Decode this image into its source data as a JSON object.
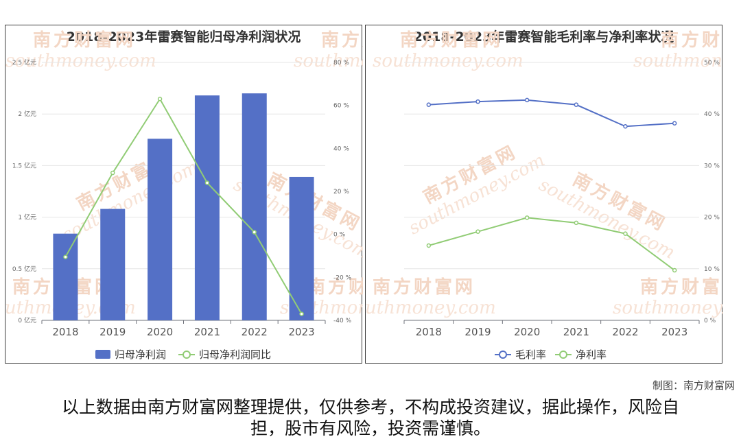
{
  "charts": [
    {
      "title": "2018-2023年雷赛智能归母净利润状况",
      "legend": [
        "归母净利润",
        "归母净利润同比"
      ]
    },
    {
      "title": "2018-2023年雷赛智能毛利率与净利率状况",
      "legend": [
        "毛利率",
        "净利率"
      ]
    }
  ],
  "chart_data": [
    {
      "type": "bar",
      "title": "2018-2023年雷赛智能归母净利润状况",
      "categories": [
        "2018",
        "2019",
        "2020",
        "2021",
        "2022",
        "2023"
      ],
      "series": [
        {
          "name": "归母净利润",
          "type": "bar",
          "axis": "left",
          "color": "#5470c6",
          "values": [
            0.84,
            1.08,
            1.76,
            2.18,
            2.2,
            1.39
          ]
        },
        {
          "name": "归母净利润同比",
          "type": "line",
          "axis": "right",
          "color": "#91cc75",
          "values": [
            -10.5,
            28.6,
            63,
            24,
            1,
            -37
          ]
        }
      ],
      "y_left": {
        "ticks": [
          0,
          0.5,
          1,
          1.5,
          2,
          2.5
        ],
        "tick_labels": [
          "0 亿元",
          "0.5 亿元",
          "1 亿元",
          "1.5 亿元",
          "2 亿元",
          "2.5 亿元"
        ],
        "range": [
          0,
          2.5
        ]
      },
      "y_right": {
        "ticks": [
          -40,
          -20,
          0,
          20,
          40,
          60,
          80
        ],
        "tick_labels": [
          "-40 %",
          "-20 %",
          "0 %",
          "20 %",
          "40 %",
          "60 %",
          "80 %"
        ],
        "range": [
          -40,
          80
        ]
      },
      "grid": true,
      "legend_position": "bottom-center"
    },
    {
      "type": "line",
      "title": "2018-2023年雷赛智能毛利率与净利率状况",
      "categories": [
        "2018",
        "2019",
        "2020",
        "2021",
        "2022",
        "2023"
      ],
      "series": [
        {
          "name": "毛利率",
          "color": "#5470c6",
          "values": [
            41.8,
            42.4,
            42.7,
            41.8,
            37.6,
            38.2
          ]
        },
        {
          "name": "净利率",
          "color": "#91cc75",
          "values": [
            14.5,
            17.2,
            19.9,
            18.9,
            16.8,
            9.7
          ]
        }
      ],
      "y_right": {
        "ticks": [
          0,
          10,
          20,
          30,
          40,
          50
        ],
        "tick_labels": [
          "0 %",
          "10 %",
          "20 %",
          "30 %",
          "40 %",
          "50 %"
        ],
        "range": [
          0,
          50
        ]
      },
      "grid": true,
      "legend_position": "bottom-center"
    }
  ],
  "watermark": {
    "text": "南方财富网",
    "sub": "southmoney.com"
  },
  "footer": {
    "credit": "制图：南方财富网",
    "disclaimer": "以上数据由南方财富网整理提供，仅供参考，不构成投资建议，据此操作，风险自担，股市有风险，投资需谨慎。"
  }
}
